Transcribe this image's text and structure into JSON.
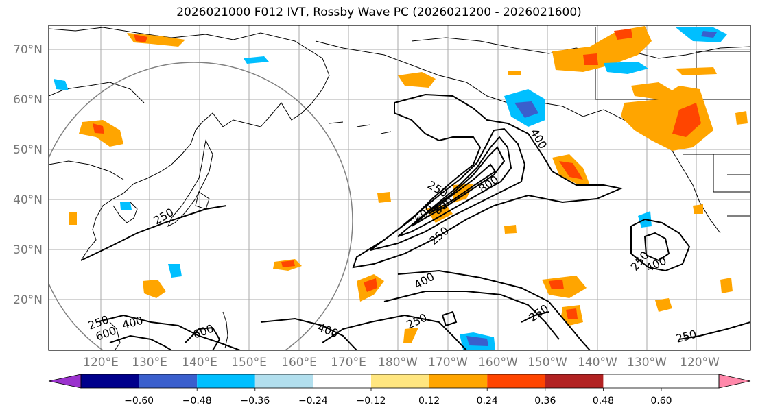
{
  "title": "2026021000 F012 IVT, Rossby Wave PC (2026021200 - 2026021600)",
  "lat_labels": [
    "70°N",
    "60°N",
    "50°N",
    "40°N",
    "30°N",
    "20°N"
  ],
  "lon_labels": [
    "120°E",
    "130°E",
    "140°E",
    "150°E",
    "160°E",
    "170°E",
    "180°W",
    "170°W",
    "160°W",
    "150°W",
    "140°W",
    "130°W",
    "120°W"
  ],
  "colorbar": {
    "colors": [
      "#9a32cd",
      "#00008b",
      "#3a5fcd",
      "#00bfff",
      "#b2dfee",
      "#ffffff",
      "#ffe680",
      "#ffa500",
      "#ff4500",
      "#b22222",
      "#ff88aa"
    ],
    "ticks": [
      "−0.60",
      "−0.48",
      "−0.36",
      "−0.24",
      "−0.12",
      "0.12",
      "0.24",
      "0.36",
      "0.48",
      "0.60"
    ]
  },
  "contour_labels": [
    {
      "text": "250",
      "name": "contour-label-250-jpn"
    },
    {
      "text": "250",
      "name": "contour-label-250-npac"
    },
    {
      "text": "600",
      "name": "contour-label-600-jet"
    },
    {
      "text": "800",
      "name": "contour-label-800-jet-a"
    },
    {
      "text": "800",
      "name": "contour-label-800-jet-b"
    },
    {
      "text": "400",
      "name": "contour-label-400-gulf"
    },
    {
      "text": "250",
      "name": "contour-label-250-jet-s"
    },
    {
      "text": "400",
      "name": "contour-label-400-central"
    },
    {
      "text": "250",
      "name": "contour-label-250-central"
    },
    {
      "text": "250",
      "name": "contour-label-250-east"
    },
    {
      "text": "250",
      "name": "contour-label-250-east-b"
    },
    {
      "text": "400",
      "name": "contour-label-400-east"
    },
    {
      "text": "250",
      "name": "contour-label-250-se"
    },
    {
      "text": "400",
      "name": "contour-label-400-sw"
    },
    {
      "text": "250",
      "name": "contour-label-250-sw"
    },
    {
      "text": "600",
      "name": "contour-label-600-sw"
    },
    {
      "text": "400",
      "name": "contour-label-400-south"
    },
    {
      "text": "600",
      "name": "contour-label-600-south"
    }
  ]
}
